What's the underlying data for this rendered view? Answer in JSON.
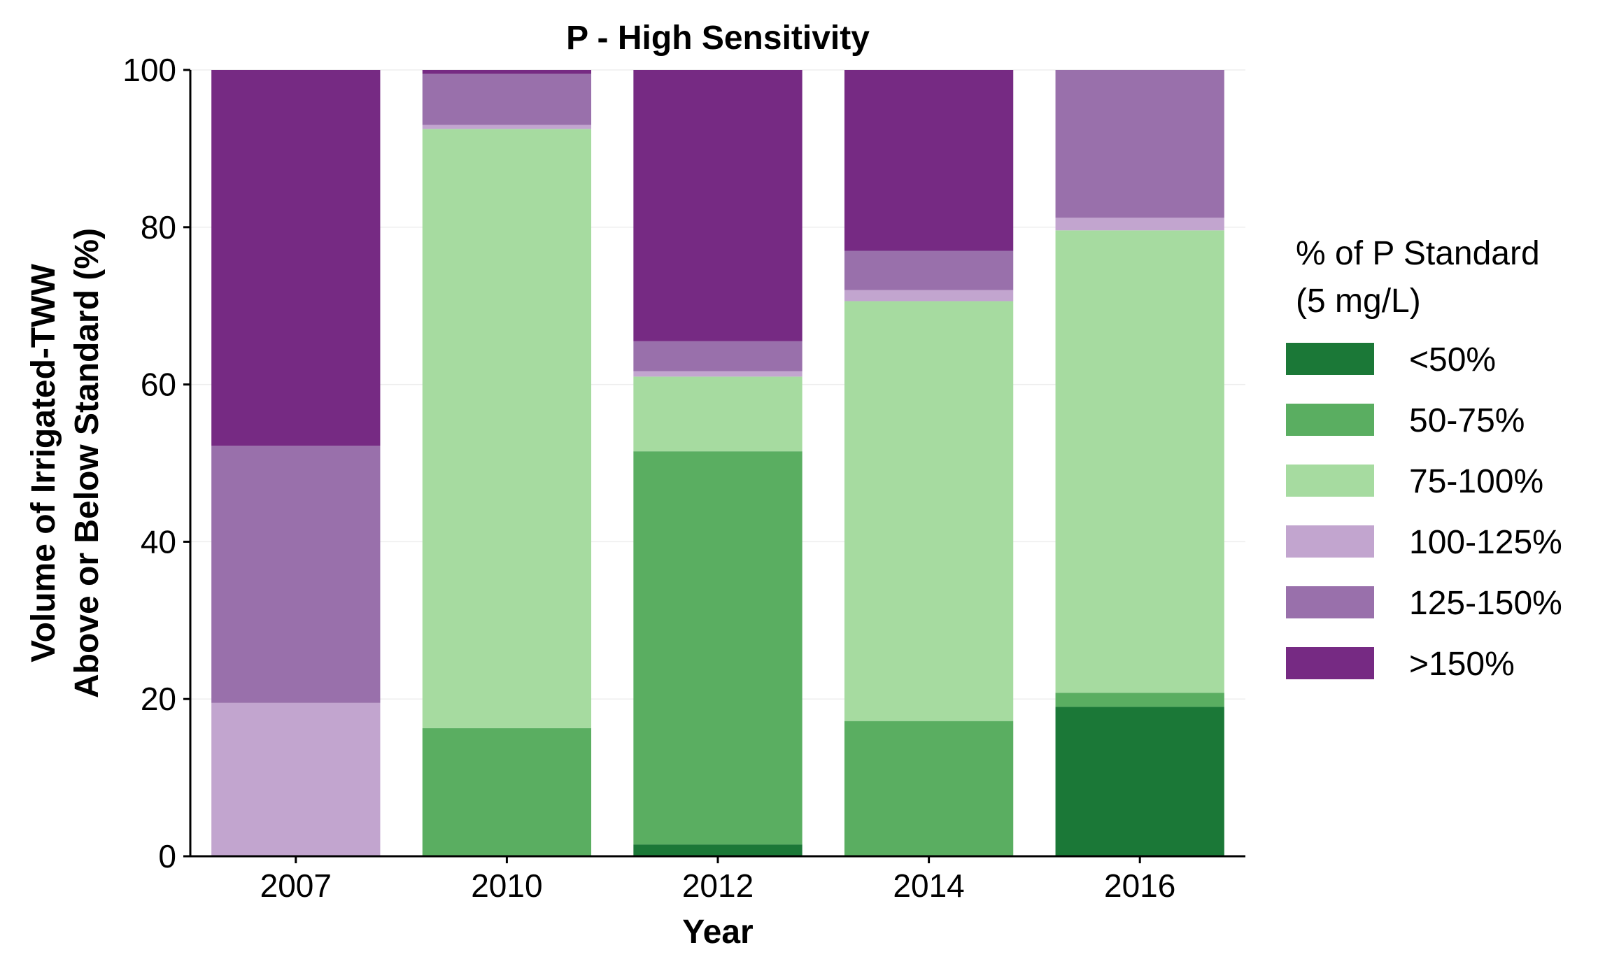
{
  "chart_data": {
    "type": "bar",
    "stacked": true,
    "title": "P - High Sensitivity",
    "xlabel": "Year",
    "ylabel_lines": [
      "Volume of Irrigated-TWW",
      "Above or Below Standard (%)"
    ],
    "categories": [
      "2007",
      "2010",
      "2012",
      "2014",
      "2016"
    ],
    "ylim": [
      0,
      100
    ],
    "yticks": [
      "0",
      "20",
      "40",
      "60",
      "80",
      "100"
    ],
    "grid": true,
    "legend_title_lines": [
      "% of P Standard",
      "(5 mg/L)"
    ],
    "legend_position": "right",
    "series": [
      {
        "name": "<50%",
        "color": "#1b7837",
        "values": [
          0.0,
          0.0,
          1.5,
          0.0,
          19.0
        ]
      },
      {
        "name": "50-75%",
        "color": "#5aae61",
        "values": [
          0.0,
          16.3,
          50.0,
          17.2,
          1.8
        ]
      },
      {
        "name": "75-100%",
        "color": "#a6dba0",
        "values": [
          0.0,
          76.2,
          9.5,
          53.4,
          58.8
        ]
      },
      {
        "name": "100-125%",
        "color": "#c2a5cf",
        "values": [
          19.5,
          0.5,
          0.7,
          1.4,
          1.6
        ]
      },
      {
        "name": "125-150%",
        "color": "#9970ab",
        "values": [
          32.7,
          6.5,
          3.8,
          5.0,
          18.8
        ]
      },
      {
        "name": ">150%",
        "color": "#762a83",
        "values": [
          47.8,
          0.5,
          34.5,
          23.0,
          0.0
        ]
      }
    ]
  }
}
